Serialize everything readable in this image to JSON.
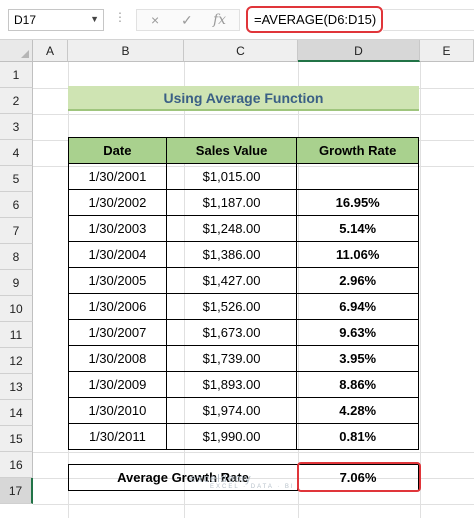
{
  "namebox": {
    "cell": "D17"
  },
  "formula_bar": {
    "cancel_icon": "×",
    "enter_icon": "✓",
    "fx_label": "fx",
    "formula": "=AVERAGE(D6:D15)"
  },
  "columns": [
    "A",
    "B",
    "C",
    "D",
    "E"
  ],
  "rows": [
    "1",
    "2",
    "3",
    "4",
    "5",
    "6",
    "7",
    "8",
    "9",
    "10",
    "11",
    "12",
    "13",
    "14",
    "15",
    "16",
    "17"
  ],
  "title": "Using Average Function",
  "table": {
    "headers": [
      "Date",
      "Sales Value",
      "Growth Rate"
    ],
    "rows": [
      [
        "1/30/2001",
        "$1,015.00",
        ""
      ],
      [
        "1/30/2002",
        "$1,187.00",
        "16.95%"
      ],
      [
        "1/30/2003",
        "$1,248.00",
        "5.14%"
      ],
      [
        "1/30/2004",
        "$1,386.00",
        "11.06%"
      ],
      [
        "1/30/2005",
        "$1,427.00",
        "2.96%"
      ],
      [
        "1/30/2006",
        "$1,526.00",
        "6.94%"
      ],
      [
        "1/30/2007",
        "$1,673.00",
        "9.63%"
      ],
      [
        "1/30/2008",
        "$1,739.00",
        "3.95%"
      ],
      [
        "1/30/2009",
        "$1,893.00",
        "8.86%"
      ],
      [
        "1/30/2010",
        "$1,974.00",
        "4.28%"
      ],
      [
        "1/30/2011",
        "$1,990.00",
        "0.81%"
      ]
    ]
  },
  "average": {
    "label": "Average Growth Rate",
    "value": "7.06%"
  },
  "watermark": {
    "brand": "exceldemy",
    "tagline": "EXCEL · DATA · BI"
  },
  "colors": {
    "header_fill": "#a9d18e",
    "title_fill": "#cfe4b3",
    "highlight": "#e0353a",
    "title_text": "#3a5f85"
  }
}
